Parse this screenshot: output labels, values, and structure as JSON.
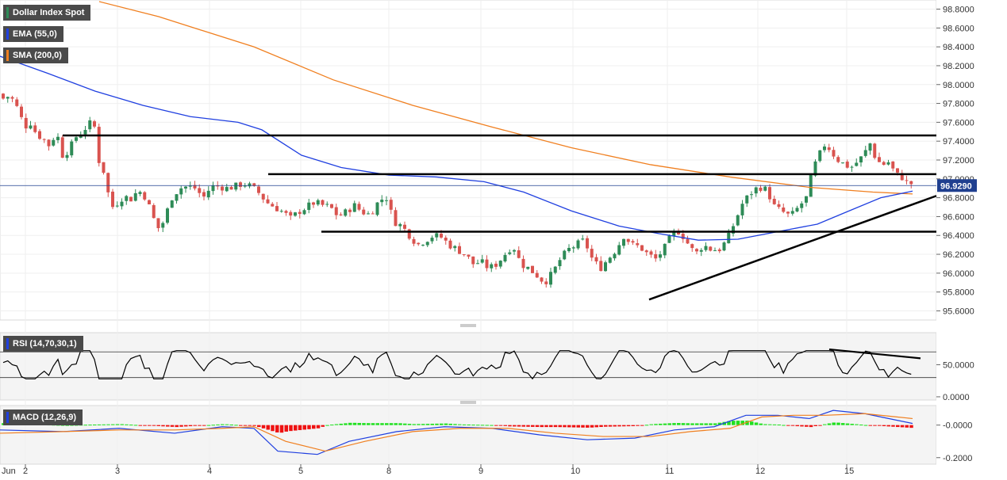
{
  "chart_data": [
    {
      "type": "candlestick",
      "legend": [
        {
          "label": "Dollar Index Spot",
          "color": "#2e8b57"
        },
        {
          "label": "EMA (55,0)",
          "color": "#1f3fe0"
        },
        {
          "label": "SMA (200,0)",
          "color": "#f07f1f"
        }
      ],
      "yticks": [
        "98.8000",
        "98.6000",
        "98.4000",
        "98.2000",
        "98.0000",
        "97.8000",
        "97.6000",
        "97.4000",
        "97.2000",
        "97.0000",
        "96.8000",
        "96.6000",
        "96.4000",
        "96.2000",
        "96.0000",
        "95.8000",
        "95.6000"
      ],
      "ylim": [
        95.52,
        98.88
      ],
      "last_price": "96.9290",
      "last_price_value": 96.929,
      "xticks": [
        "Jun",
        "2",
        "3",
        "4",
        "5",
        "8",
        "9",
        "10",
        "11",
        "12",
        "15"
      ],
      "horizontal_levels": [
        97.46,
        97.05,
        96.44
      ],
      "trendline": {
        "from": [
          95.72
        ],
        "to": [
          96.82
        ]
      },
      "candle_count": 200,
      "up_color": "#2e8b57",
      "down_color": "#d9534f"
    },
    {
      "type": "line",
      "legend": "RSI (14,70,30,1)",
      "yticks": [
        "50.0000",
        "0.0000"
      ],
      "bands": [
        70,
        30
      ],
      "ylim": [
        -5,
        100
      ]
    },
    {
      "type": "histogram",
      "legend": "MACD (12,26,9)",
      "yticks": [
        "-0.0000",
        "-0.2000"
      ],
      "ylim": [
        -0.24,
        0.12
      ],
      "pos_color": "#1fe01f",
      "neg_color": "#ee1111"
    }
  ]
}
